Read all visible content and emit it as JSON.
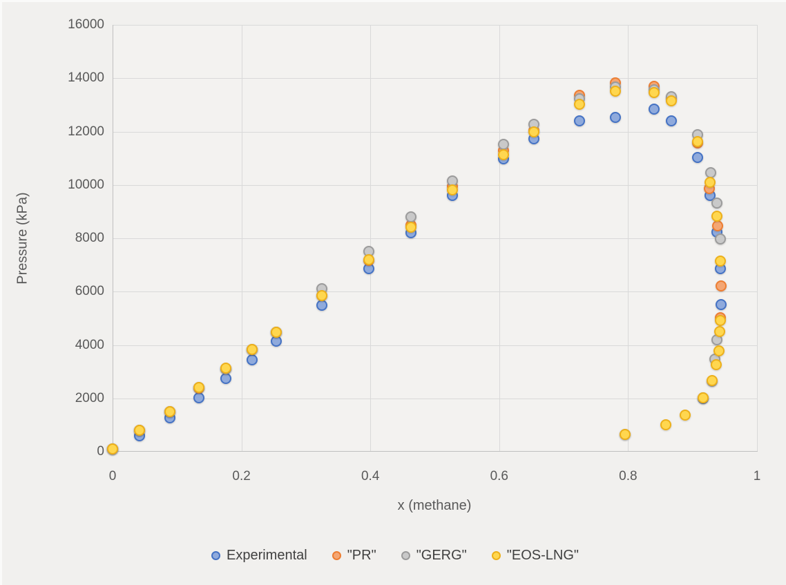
{
  "chart_data": {
    "type": "scatter",
    "title": "",
    "xlabel": "x (methane)",
    "ylabel": "Pressure (kPa)",
    "xlim": [
      0,
      1
    ],
    "ylim": [
      0,
      16000
    ],
    "xticks": [
      0,
      0.2,
      0.4,
      0.6,
      0.8,
      1
    ],
    "xtick_labels": [
      "0",
      "0.2",
      "0.4",
      "0.6",
      "0.8",
      "1"
    ],
    "yticks": [
      0,
      2000,
      4000,
      6000,
      8000,
      10000,
      12000,
      14000,
      16000
    ],
    "ytick_labels": [
      "0",
      "2000",
      "4000",
      "6000",
      "8000",
      "10000",
      "12000",
      "14000",
      "16000"
    ],
    "grid": true,
    "legend_position": "bottom",
    "series": [
      {
        "name": "Experimental",
        "marker_border": "#4472C4",
        "marker_fill": "#8FAADC",
        "points": [
          [
            0.0,
            100
          ],
          [
            0.042,
            600
          ],
          [
            0.089,
            1280
          ],
          [
            0.134,
            2030
          ],
          [
            0.176,
            2750
          ],
          [
            0.216,
            3450
          ],
          [
            0.254,
            4150
          ],
          [
            0.325,
            5500
          ],
          [
            0.398,
            6850
          ],
          [
            0.463,
            8200
          ],
          [
            0.527,
            9610
          ],
          [
            0.607,
            10980
          ],
          [
            0.654,
            11730
          ],
          [
            0.725,
            12390
          ],
          [
            0.78,
            12530
          ],
          [
            0.84,
            12850
          ],
          [
            0.867,
            12390
          ],
          [
            0.908,
            11040
          ],
          [
            0.927,
            9610
          ],
          [
            0.938,
            8240
          ],
          [
            0.943,
            6870
          ],
          [
            0.944,
            5520
          ],
          [
            0.916,
            1990
          ]
        ]
      },
      {
        "name": "\"PR\"",
        "marker_border": "#ED7D31",
        "marker_fill": "#F4A673",
        "points": [
          [
            0.0,
            100
          ],
          [
            0.042,
            790
          ],
          [
            0.089,
            1490
          ],
          [
            0.134,
            2390
          ],
          [
            0.176,
            3110
          ],
          [
            0.216,
            3830
          ],
          [
            0.254,
            4470
          ],
          [
            0.325,
            5840
          ],
          [
            0.398,
            7180
          ],
          [
            0.463,
            8500
          ],
          [
            0.527,
            9930
          ],
          [
            0.607,
            11280
          ],
          [
            0.654,
            12030
          ],
          [
            0.725,
            13360
          ],
          [
            0.78,
            13820
          ],
          [
            0.84,
            13690
          ],
          [
            0.867,
            13260
          ],
          [
            0.908,
            11560
          ],
          [
            0.926,
            9870
          ],
          [
            0.939,
            8470
          ],
          [
            0.944,
            6220
          ],
          [
            0.943,
            5030
          ]
        ]
      },
      {
        "name": "\"GERG\"",
        "marker_border": "#9B9B9B",
        "marker_fill": "#C9C9C9",
        "points": [
          [
            0.0,
            100
          ],
          [
            0.042,
            795
          ],
          [
            0.089,
            1495
          ],
          [
            0.134,
            2395
          ],
          [
            0.176,
            3115
          ],
          [
            0.216,
            3835
          ],
          [
            0.254,
            4475
          ],
          [
            0.325,
            6110
          ],
          [
            0.398,
            7500
          ],
          [
            0.463,
            8790
          ],
          [
            0.527,
            10150
          ],
          [
            0.607,
            11510
          ],
          [
            0.654,
            12270
          ],
          [
            0.725,
            13230
          ],
          [
            0.78,
            13660
          ],
          [
            0.84,
            13560
          ],
          [
            0.867,
            13300
          ],
          [
            0.908,
            11890
          ],
          [
            0.928,
            10470
          ],
          [
            0.938,
            9330
          ],
          [
            0.943,
            7980
          ],
          [
            0.938,
            4200
          ],
          [
            0.935,
            3480
          ],
          [
            0.93,
            2640
          ],
          [
            0.916,
            2020
          ],
          [
            0.795,
            660
          ]
        ]
      },
      {
        "name": "\"EOS-LNG\"",
        "marker_border": "#EDB01A",
        "marker_fill": "#FFD74F",
        "points": [
          [
            0.0,
            110
          ],
          [
            0.042,
            800
          ],
          [
            0.089,
            1500
          ],
          [
            0.134,
            2400
          ],
          [
            0.176,
            3120
          ],
          [
            0.216,
            3840
          ],
          [
            0.254,
            4480
          ],
          [
            0.325,
            5850
          ],
          [
            0.398,
            7190
          ],
          [
            0.463,
            8420
          ],
          [
            0.527,
            9800
          ],
          [
            0.607,
            11140
          ],
          [
            0.654,
            11990
          ],
          [
            0.725,
            13030
          ],
          [
            0.78,
            13520
          ],
          [
            0.84,
            13460
          ],
          [
            0.867,
            13140
          ],
          [
            0.908,
            11630
          ],
          [
            0.927,
            10100
          ],
          [
            0.938,
            8840
          ],
          [
            0.943,
            7150
          ],
          [
            0.943,
            4920
          ],
          [
            0.942,
            4510
          ],
          [
            0.941,
            3790
          ],
          [
            0.937,
            3250
          ],
          [
            0.93,
            2670
          ],
          [
            0.916,
            2020
          ],
          [
            0.889,
            1370
          ],
          [
            0.858,
            1020
          ],
          [
            0.795,
            640
          ]
        ]
      }
    ]
  },
  "colors": {
    "background": "#f1f0ee",
    "gridline": "#d9d9d9",
    "axis_line": "#bfbfbf",
    "tick_text": "#595959",
    "legend_text": "#404040"
  }
}
